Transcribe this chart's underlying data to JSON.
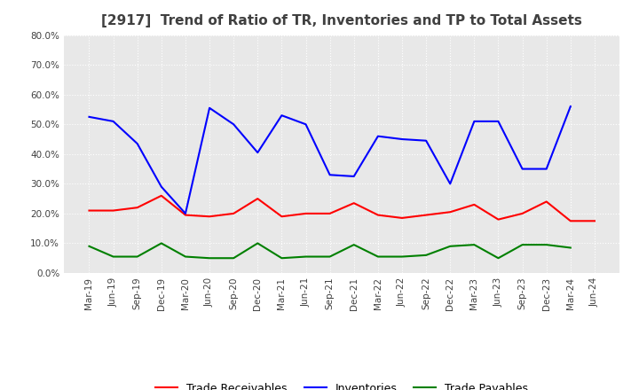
{
  "title": "[2917]  Trend of Ratio of TR, Inventories and TP to Total Assets",
  "labels": [
    "Mar-19",
    "Jun-19",
    "Sep-19",
    "Dec-19",
    "Mar-20",
    "Jun-20",
    "Sep-20",
    "Dec-20",
    "Mar-21",
    "Jun-21",
    "Sep-21",
    "Dec-21",
    "Mar-22",
    "Jun-22",
    "Sep-22",
    "Dec-22",
    "Mar-23",
    "Jun-23",
    "Sep-23",
    "Dec-23",
    "Mar-24",
    "Jun-24"
  ],
  "trade_receivables": [
    0.21,
    0.21,
    0.22,
    0.26,
    0.195,
    0.19,
    0.2,
    0.25,
    0.19,
    0.2,
    0.2,
    0.235,
    0.195,
    0.185,
    0.195,
    0.205,
    0.23,
    0.18,
    0.2,
    0.24,
    0.175,
    0.175
  ],
  "inventories": [
    0.525,
    0.51,
    0.435,
    0.29,
    0.2,
    0.555,
    0.5,
    0.405,
    0.53,
    0.5,
    0.33,
    0.325,
    0.46,
    0.45,
    0.445,
    0.3,
    0.51,
    0.51,
    0.35,
    0.35,
    0.56,
    null
  ],
  "trade_payables": [
    0.09,
    0.055,
    0.055,
    0.1,
    0.055,
    0.05,
    0.05,
    0.1,
    0.05,
    0.055,
    0.055,
    0.095,
    0.055,
    0.055,
    0.06,
    0.09,
    0.095,
    0.05,
    0.095,
    0.095,
    0.085,
    null
  ],
  "tr_color": "#ff0000",
  "inv_color": "#0000ff",
  "tp_color": "#008000",
  "ylim": [
    0.0,
    0.8
  ],
  "yticks": [
    0.0,
    0.1,
    0.2,
    0.3,
    0.4,
    0.5,
    0.6,
    0.7,
    0.8
  ],
  "plot_bg_color": "#e8e8e8",
  "fig_bg_color": "#ffffff",
  "grid_color": "#ffffff",
  "title_color": "#404040",
  "legend_labels": [
    "Trade Receivables",
    "Inventories",
    "Trade Payables"
  ],
  "figsize": [
    7.2,
    4.4
  ],
  "dpi": 100
}
